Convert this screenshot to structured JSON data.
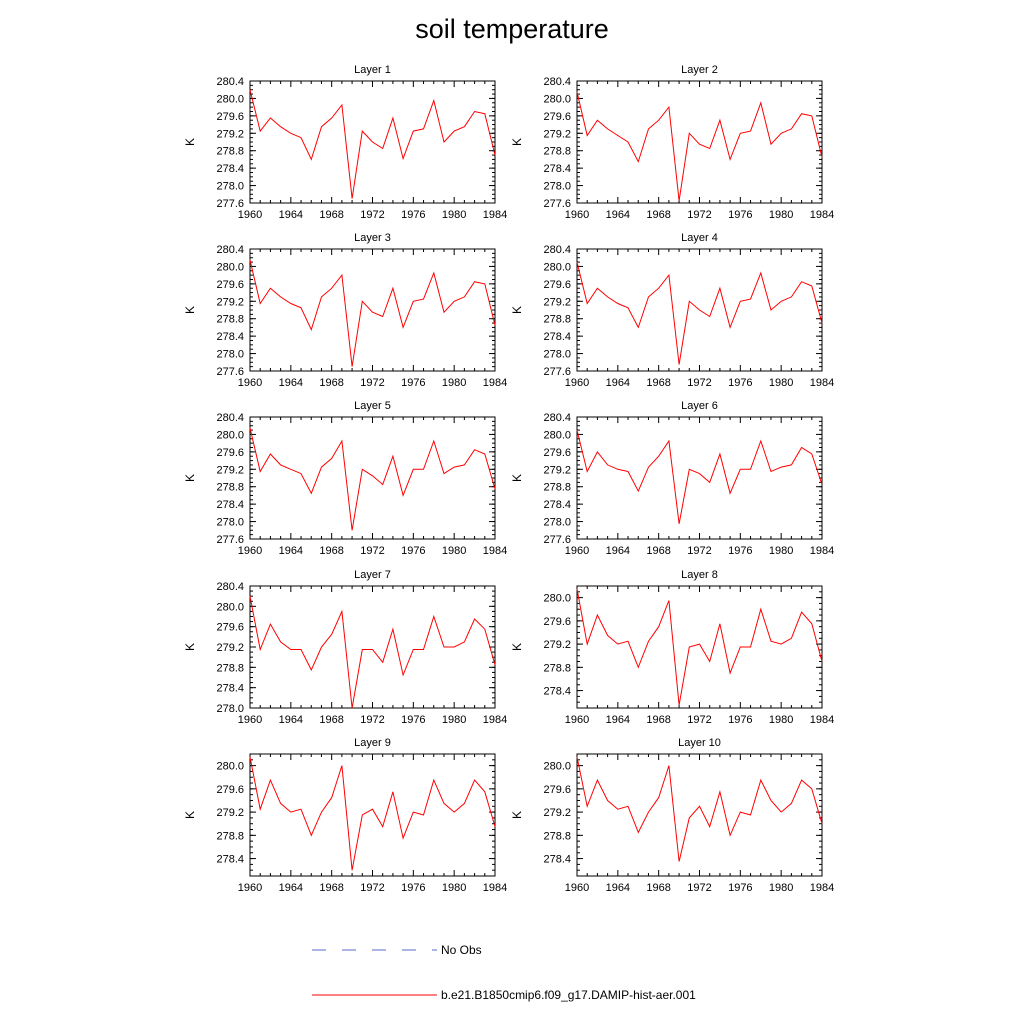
{
  "title": "soil temperature",
  "ylabel": "K",
  "xticks": [
    1960,
    1964,
    1968,
    1972,
    1976,
    1980,
    1984
  ],
  "legend": [
    {
      "label": "No Obs",
      "style": "dashed",
      "color": "#5a6ac8"
    },
    {
      "label": "b.e21.B1850cmip6.f09_g17.DAMIP-hist-aer.001",
      "style": "solid",
      "color": "#ff0000"
    }
  ],
  "line_color": "#ff0000",
  "chart_data": [
    {
      "type": "line",
      "title": "Layer 1",
      "ylabel": "K",
      "xlim": [
        1960,
        1984
      ],
      "ylim": [
        277.6,
        280.4
      ],
      "yticks": [
        277.6,
        278.0,
        278.4,
        278.8,
        279.2,
        279.6,
        280.0,
        280.4
      ],
      "series": [
        {
          "x": [
            1960,
            1961,
            1962,
            1963,
            1964,
            1965,
            1966,
            1967,
            1968,
            1969,
            1970,
            1971,
            1972,
            1973,
            1974,
            1975,
            1976,
            1977,
            1978,
            1979,
            1980,
            1981,
            1982,
            1983,
            1984
          ],
          "values": [
            280.2,
            279.25,
            279.55,
            279.35,
            279.2,
            279.1,
            278.6,
            279.35,
            279.55,
            279.85,
            277.7,
            279.25,
            279.0,
            278.85,
            279.55,
            278.62,
            279.25,
            279.3,
            279.95,
            279.0,
            279.25,
            279.35,
            279.7,
            279.65,
            278.7
          ]
        }
      ]
    },
    {
      "type": "line",
      "title": "Layer 2",
      "ylabel": "K",
      "xlim": [
        1960,
        1984
      ],
      "ylim": [
        277.6,
        280.4
      ],
      "yticks": [
        277.6,
        278.0,
        278.4,
        278.8,
        279.2,
        279.6,
        280.0,
        280.4
      ],
      "series": [
        {
          "x": [
            1960,
            1961,
            1962,
            1963,
            1964,
            1965,
            1966,
            1967,
            1968,
            1969,
            1970,
            1971,
            1972,
            1973,
            1974,
            1975,
            1976,
            1977,
            1978,
            1979,
            1980,
            1981,
            1982,
            1983,
            1984
          ],
          "values": [
            280.15,
            279.15,
            279.5,
            279.3,
            279.15,
            279.0,
            278.55,
            279.3,
            279.5,
            279.8,
            277.65,
            279.2,
            278.95,
            278.85,
            279.5,
            278.6,
            279.2,
            279.25,
            279.9,
            278.95,
            279.2,
            279.3,
            279.65,
            279.6,
            278.65
          ]
        }
      ]
    },
    {
      "type": "line",
      "title": "Layer 3",
      "ylabel": "K",
      "xlim": [
        1960,
        1984
      ],
      "ylim": [
        277.6,
        280.4
      ],
      "yticks": [
        277.6,
        278.0,
        278.4,
        278.8,
        279.2,
        279.6,
        280.0,
        280.4
      ],
      "series": [
        {
          "x": [
            1960,
            1961,
            1962,
            1963,
            1964,
            1965,
            1966,
            1967,
            1968,
            1969,
            1970,
            1971,
            1972,
            1973,
            1974,
            1975,
            1976,
            1977,
            1978,
            1979,
            1980,
            1981,
            1982,
            1983,
            1984
          ],
          "values": [
            280.15,
            279.15,
            279.5,
            279.3,
            279.15,
            279.05,
            278.55,
            279.3,
            279.5,
            279.8,
            277.7,
            279.2,
            278.95,
            278.85,
            279.5,
            278.6,
            279.2,
            279.25,
            279.85,
            278.95,
            279.2,
            279.3,
            279.65,
            279.6,
            278.65
          ]
        }
      ]
    },
    {
      "type": "line",
      "title": "Layer 4",
      "ylabel": "K",
      "xlim": [
        1960,
        1984
      ],
      "ylim": [
        277.6,
        280.4
      ],
      "yticks": [
        277.6,
        278.0,
        278.4,
        278.8,
        279.2,
        279.6,
        280.0,
        280.4
      ],
      "series": [
        {
          "x": [
            1960,
            1961,
            1962,
            1963,
            1964,
            1965,
            1966,
            1967,
            1968,
            1969,
            1970,
            1971,
            1972,
            1973,
            1974,
            1975,
            1976,
            1977,
            1978,
            1979,
            1980,
            1981,
            1982,
            1983,
            1984
          ],
          "values": [
            280.1,
            279.15,
            279.5,
            279.3,
            279.15,
            279.05,
            278.6,
            279.3,
            279.5,
            279.8,
            277.75,
            279.2,
            279.0,
            278.85,
            279.5,
            278.6,
            279.2,
            279.25,
            279.85,
            279.0,
            279.2,
            279.3,
            279.65,
            279.55,
            278.7
          ]
        }
      ]
    },
    {
      "type": "line",
      "title": "Layer 5",
      "ylabel": "K",
      "xlim": [
        1960,
        1984
      ],
      "ylim": [
        277.6,
        280.4
      ],
      "yticks": [
        277.6,
        278.0,
        278.4,
        278.8,
        279.2,
        279.6,
        280.0,
        280.4
      ],
      "series": [
        {
          "x": [
            1960,
            1961,
            1962,
            1963,
            1964,
            1965,
            1966,
            1967,
            1968,
            1969,
            1970,
            1971,
            1972,
            1973,
            1974,
            1975,
            1976,
            1977,
            1978,
            1979,
            1980,
            1981,
            1982,
            1983,
            1984
          ],
          "values": [
            280.15,
            279.15,
            279.55,
            279.3,
            279.2,
            279.1,
            278.65,
            279.25,
            279.45,
            279.85,
            277.8,
            279.2,
            279.05,
            278.85,
            279.5,
            278.6,
            279.2,
            279.2,
            279.85,
            279.1,
            279.25,
            279.3,
            279.65,
            279.55,
            278.75
          ]
        }
      ]
    },
    {
      "type": "line",
      "title": "Layer 6",
      "ylabel": "K",
      "xlim": [
        1960,
        1984
      ],
      "ylim": [
        277.6,
        280.4
      ],
      "yticks": [
        277.6,
        278.0,
        278.4,
        278.8,
        279.2,
        279.6,
        280.0,
        280.4
      ],
      "series": [
        {
          "x": [
            1960,
            1961,
            1962,
            1963,
            1964,
            1965,
            1966,
            1967,
            1968,
            1969,
            1970,
            1971,
            1972,
            1973,
            1974,
            1975,
            1976,
            1977,
            1978,
            1979,
            1980,
            1981,
            1982,
            1983,
            1984
          ],
          "values": [
            280.1,
            279.15,
            279.6,
            279.3,
            279.2,
            279.15,
            278.7,
            279.25,
            279.5,
            279.85,
            277.95,
            279.2,
            279.1,
            278.9,
            279.55,
            278.65,
            279.2,
            279.2,
            279.85,
            279.15,
            279.25,
            279.3,
            279.7,
            279.55,
            278.85
          ]
        }
      ]
    },
    {
      "type": "line",
      "title": "Layer 7",
      "ylabel": "K",
      "xlim": [
        1960,
        1984
      ],
      "ylim": [
        278.0,
        280.4
      ],
      "yticks": [
        278.0,
        278.4,
        278.8,
        279.2,
        279.6,
        280.0,
        280.4
      ],
      "series": [
        {
          "x": [
            1960,
            1961,
            1962,
            1963,
            1964,
            1965,
            1966,
            1967,
            1968,
            1969,
            1970,
            1971,
            1972,
            1973,
            1974,
            1975,
            1976,
            1977,
            1978,
            1979,
            1980,
            1981,
            1982,
            1983,
            1984
          ],
          "values": [
            280.2,
            279.15,
            279.65,
            279.3,
            279.15,
            279.15,
            278.75,
            279.2,
            279.45,
            279.9,
            278.0,
            279.15,
            279.15,
            278.9,
            279.55,
            278.65,
            279.15,
            279.15,
            279.8,
            279.2,
            279.2,
            279.3,
            279.75,
            279.55,
            278.85
          ]
        }
      ]
    },
    {
      "type": "line",
      "title": "Layer 8",
      "ylabel": "K",
      "xlim": [
        1960,
        1984
      ],
      "ylim": [
        278.1,
        280.2
      ],
      "yticks": [
        278.4,
        278.8,
        279.2,
        279.6,
        280.0
      ],
      "series": [
        {
          "x": [
            1960,
            1961,
            1962,
            1963,
            1964,
            1965,
            1966,
            1967,
            1968,
            1969,
            1970,
            1971,
            1972,
            1973,
            1974,
            1975,
            1976,
            1977,
            1978,
            1979,
            1980,
            1981,
            1982,
            1983,
            1984
          ],
          "values": [
            280.15,
            279.2,
            279.7,
            279.35,
            279.2,
            279.25,
            278.8,
            279.25,
            279.5,
            279.95,
            278.15,
            279.15,
            279.2,
            278.9,
            279.55,
            278.7,
            279.15,
            279.15,
            279.8,
            279.25,
            279.2,
            279.3,
            279.75,
            279.55,
            278.9
          ]
        }
      ]
    },
    {
      "type": "line",
      "title": "Layer 9",
      "ylabel": "K",
      "xlim": [
        1960,
        1984
      ],
      "ylim": [
        278.1,
        280.2
      ],
      "yticks": [
        278.4,
        278.8,
        279.2,
        279.6,
        280.0
      ],
      "series": [
        {
          "x": [
            1960,
            1961,
            1962,
            1963,
            1964,
            1965,
            1966,
            1967,
            1968,
            1969,
            1970,
            1971,
            1972,
            1973,
            1974,
            1975,
            1976,
            1977,
            1978,
            1979,
            1980,
            1981,
            1982,
            1983,
            1984
          ],
          "values": [
            280.15,
            279.25,
            279.75,
            279.35,
            279.2,
            279.25,
            278.8,
            279.2,
            279.45,
            280.0,
            278.2,
            279.15,
            279.25,
            278.95,
            279.55,
            278.75,
            279.2,
            279.15,
            279.75,
            279.35,
            279.2,
            279.35,
            279.75,
            279.55,
            278.95
          ]
        }
      ]
    },
    {
      "type": "line",
      "title": "Layer 10",
      "ylabel": "K",
      "xlim": [
        1960,
        1984
      ],
      "ylim": [
        278.1,
        280.2
      ],
      "yticks": [
        278.4,
        278.8,
        279.2,
        279.6,
        280.0
      ],
      "series": [
        {
          "x": [
            1960,
            1961,
            1962,
            1963,
            1964,
            1965,
            1966,
            1967,
            1968,
            1969,
            1970,
            1971,
            1972,
            1973,
            1974,
            1975,
            1976,
            1977,
            1978,
            1979,
            1980,
            1981,
            1982,
            1983,
            1984
          ],
          "values": [
            280.15,
            279.3,
            279.75,
            279.4,
            279.25,
            279.3,
            278.85,
            279.2,
            279.45,
            280.0,
            278.35,
            279.1,
            279.3,
            278.95,
            279.55,
            278.8,
            279.2,
            279.15,
            279.75,
            279.4,
            279.2,
            279.35,
            279.75,
            279.6,
            279.0
          ]
        }
      ]
    }
  ]
}
